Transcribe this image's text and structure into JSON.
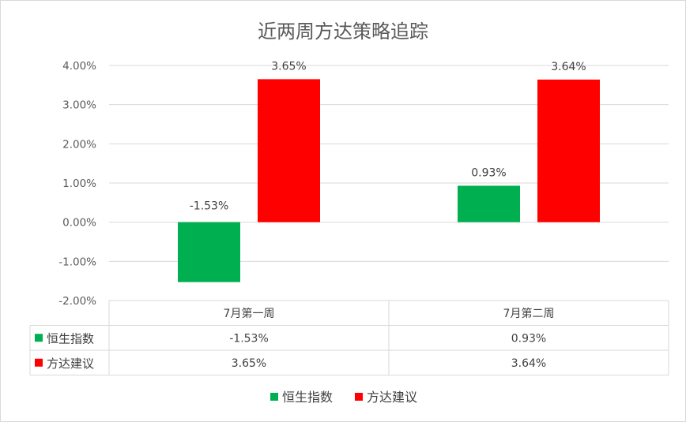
{
  "chart_data": {
    "type": "bar",
    "title": "近两周方达策略追踪",
    "categories": [
      "7月第一周",
      "7月第二周"
    ],
    "series": [
      {
        "name": "恒生指数",
        "values": [
          -1.53,
          0.93
        ],
        "labels": [
          "-1.53%",
          "0.93%"
        ],
        "color": "#00b050"
      },
      {
        "name": "方达建议",
        "values": [
          3.65,
          3.64
        ],
        "labels": [
          "3.65%",
          "3.64%"
        ],
        "color": "#ff0000"
      }
    ],
    "ylim": [
      -2,
      4
    ],
    "yticks": [
      4,
      3,
      2,
      1,
      0,
      -1,
      -2
    ],
    "ytick_labels": [
      "4.00%",
      "3.00%",
      "2.00%",
      "1.00%",
      "0.00%",
      "-1.00%",
      "-2.00%"
    ],
    "grid": true,
    "data_table": true,
    "legend": "bottom"
  }
}
